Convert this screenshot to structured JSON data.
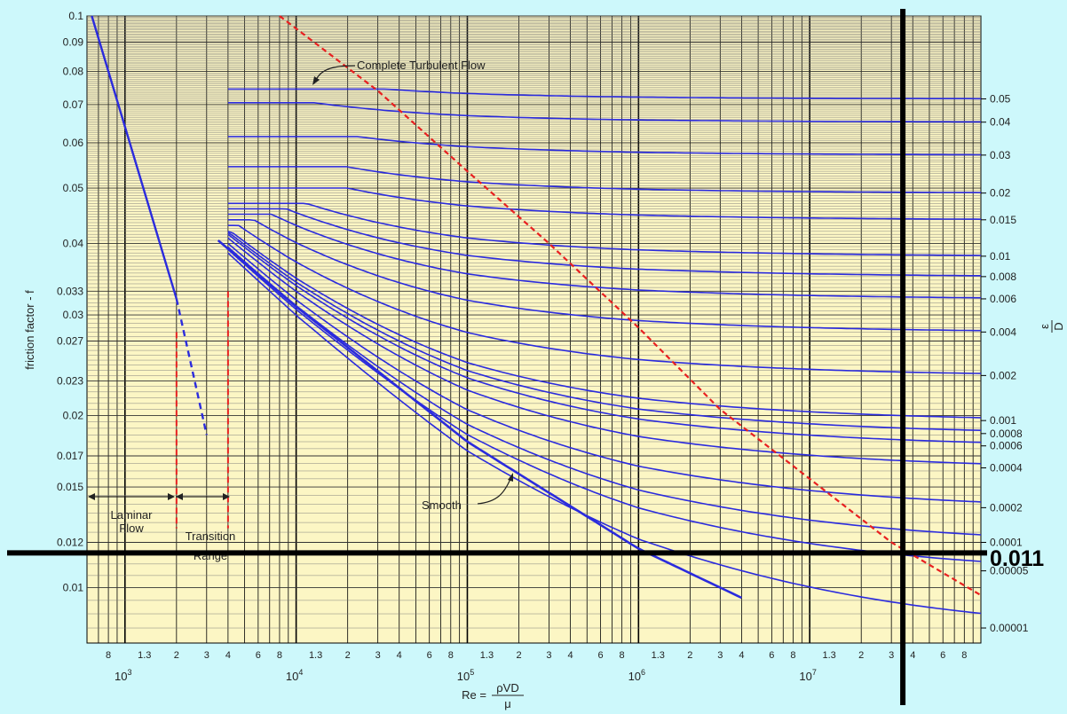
{
  "chart_data": {
    "type": "line",
    "title": "",
    "xlabel": "Re = ρVD / μ",
    "xlabel_prefix": "Re =",
    "xlabel_num": "ρVD",
    "xlabel_den": "μ",
    "ylabel": "friction factor - f",
    "right_axis_label": "ε/D",
    "right_axis_label_num": "ε",
    "right_axis_label_den": "D",
    "x_scale": "log",
    "y_scale": "log",
    "xlim": [
      600,
      100000000
    ],
    "ylim": [
      0.008,
      0.1
    ],
    "grid": true,
    "y_ticks": [
      {
        "value": 0.1,
        "label": "0.1"
      },
      {
        "value": 0.09,
        "label": "0.09"
      },
      {
        "value": 0.08,
        "label": "0.08"
      },
      {
        "value": 0.07,
        "label": "0.07"
      },
      {
        "value": 0.06,
        "label": "0.06"
      },
      {
        "value": 0.05,
        "label": "0.05"
      },
      {
        "value": 0.04,
        "label": "0.04"
      },
      {
        "value": 0.033,
        "label": "0.033"
      },
      {
        "value": 0.03,
        "label": "0.03"
      },
      {
        "value": 0.027,
        "label": "0.027"
      },
      {
        "value": 0.023,
        "label": "0.023"
      },
      {
        "value": 0.02,
        "label": "0.02"
      },
      {
        "value": 0.017,
        "label": "0.017"
      },
      {
        "value": 0.015,
        "label": "0.015"
      },
      {
        "value": 0.012,
        "label": "0.012"
      },
      {
        "value": 0.01,
        "label": "0.01"
      }
    ],
    "x_minor_labels": [
      "8",
      "1.3",
      "2",
      "3",
      "4",
      "6",
      "8"
    ],
    "x_decade_labels": [
      {
        "value": 1000,
        "base": "10",
        "exp": "3"
      },
      {
        "value": 10000,
        "base": "10",
        "exp": "4"
      },
      {
        "value": 100000,
        "base": "10",
        "exp": "5"
      },
      {
        "value": 1000000,
        "base": "10",
        "exp": "6"
      },
      {
        "value": 10000000,
        "base": "10",
        "exp": "7"
      }
    ],
    "roughness_labels": [
      "0.05",
      "0.04",
      "0.03",
      "0.02",
      "0.015",
      "0.01",
      "0.008",
      "0.006",
      "0.004",
      "0.002",
      "0.001",
      "0.0008",
      "0.0006",
      "0.0004",
      "0.0002",
      "0.0001",
      "0.00005",
      "0.00001"
    ],
    "annotations": {
      "complete_turbulent": "Complete Turbulent Flow",
      "smooth": "Smooth",
      "laminar_line1": "Laminar",
      "laminar_line2": "Flow",
      "transition_line1": "Transition",
      "transition_line2": "Range",
      "drawn_marker_value": "0.011"
    },
    "series": [
      {
        "name": "0.05",
        "x": [
          4000,
          100000000
        ],
        "y": [
          0.0745,
          0.0716
        ]
      },
      {
        "name": "0.04",
        "x": [
          4000,
          100000000
        ],
        "y": [
          0.0705,
          0.0652
        ]
      },
      {
        "name": "0.03",
        "x": [
          4000,
          100000000
        ],
        "y": [
          0.0615,
          0.0571
        ]
      },
      {
        "name": "0.02",
        "x": [
          4000,
          100000000
        ],
        "y": [
          0.0545,
          0.049
        ]
      },
      {
        "name": "0.015",
        "x": [
          4000,
          100000000
        ],
        "y": [
          0.05,
          0.044
        ]
      },
      {
        "name": "0.01",
        "x": [
          4000,
          100000000
        ],
        "y": [
          0.047,
          0.038
        ]
      },
      {
        "name": "0.008",
        "x": [
          4000,
          100000000
        ],
        "y": [
          0.046,
          0.035
        ]
      },
      {
        "name": "0.006",
        "x": [
          4000,
          100000000
        ],
        "y": [
          0.045,
          0.032
        ]
      },
      {
        "name": "0.004",
        "x": [
          4000,
          100000000
        ],
        "y": [
          0.044,
          0.028
        ]
      },
      {
        "name": "0.002",
        "x": [
          4000,
          100000000
        ],
        "y": [
          0.043,
          0.0235
        ]
      },
      {
        "name": "0.001",
        "x": [
          4000,
          100000000
        ],
        "y": [
          0.042,
          0.0196
        ]
      },
      {
        "name": "0.0008",
        "x": [
          4000,
          100000000
        ],
        "y": [
          0.0418,
          0.0186
        ]
      },
      {
        "name": "0.0006",
        "x": [
          4000,
          100000000
        ],
        "y": [
          0.0415,
          0.0177
        ]
      },
      {
        "name": "0.0004",
        "x": [
          4000,
          100000000
        ],
        "y": [
          0.0412,
          0.0162
        ]
      },
      {
        "name": "0.0002",
        "x": [
          4000,
          100000000
        ],
        "y": [
          0.041,
          0.0138
        ]
      },
      {
        "name": "0.0001",
        "x": [
          4000,
          100000000
        ],
        "y": [
          0.0408,
          0.012
        ]
      },
      {
        "name": "0.00005",
        "x": [
          4000,
          100000000
        ],
        "y": [
          0.0406,
          0.0107
        ]
      },
      {
        "name": "0.00001",
        "x": [
          4000,
          100000000
        ],
        "y": [
          0.0404,
          0.0085
        ]
      }
    ],
    "laminar": {
      "x": [
        640,
        2000
      ],
      "y": [
        0.1,
        0.032
      ]
    },
    "laminar_dashed": {
      "x": [
        2000,
        3000
      ],
      "y": [
        0.032,
        0.0185
      ]
    },
    "smooth": {
      "x": [
        3500,
        10000,
        100000,
        1000000,
        4000000
      ],
      "y": [
        0.0405,
        0.031,
        0.018,
        0.0117,
        0.0096
      ]
    },
    "complete_turbulent_curve": {
      "x": [
        8000,
        30000,
        100000,
        300000,
        1000000,
        3000000,
        10000000,
        30000000,
        100000000
      ],
      "y": [
        0.1,
        0.074,
        0.0535,
        0.04,
        0.0285,
        0.0205,
        0.0155,
        0.012,
        0.0097
      ]
    },
    "transition_bounds": [
      2000,
      4000
    ],
    "overlay_lines": {
      "x": 35000000,
      "y": 0.0115
    }
  }
}
